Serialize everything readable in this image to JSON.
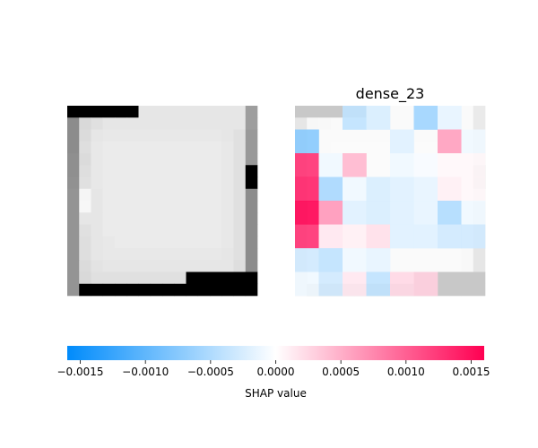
{
  "chart_data": [
    {
      "type": "heatmap",
      "title": "",
      "description_role": "input image (grayscale)",
      "grid": false,
      "axes": false,
      "cols": 16,
      "rows": 16,
      "gray_values": [
        [
          0,
          0,
          0,
          0,
          0,
          0,
          0.9,
          0.9,
          0.9,
          0.9,
          0.9,
          0.9,
          0.9,
          0.9,
          0.9,
          0.62
        ],
        [
          0.55,
          0.85,
          0.88,
          0.9,
          0.9,
          0.9,
          0.9,
          0.9,
          0.9,
          0.9,
          0.9,
          0.9,
          0.9,
          0.9,
          0.9,
          0.62
        ],
        [
          0.55,
          0.86,
          0.9,
          0.91,
          0.91,
          0.91,
          0.91,
          0.91,
          0.91,
          0.91,
          0.91,
          0.91,
          0.91,
          0.9,
          0.88,
          0.6
        ],
        [
          0.55,
          0.87,
          0.91,
          0.92,
          0.92,
          0.92,
          0.92,
          0.92,
          0.92,
          0.92,
          0.92,
          0.92,
          0.92,
          0.91,
          0.88,
          0.6
        ],
        [
          0.56,
          0.86,
          0.91,
          0.92,
          0.92,
          0.92,
          0.92,
          0.92,
          0.92,
          0.92,
          0.92,
          0.92,
          0.92,
          0.91,
          0.88,
          0.6
        ],
        [
          0.56,
          0.87,
          0.91,
          0.92,
          0.92,
          0.92,
          0.92,
          0.92,
          0.92,
          0.92,
          0.92,
          0.92,
          0.92,
          0.91,
          0.88,
          0
        ],
        [
          0.57,
          0.88,
          0.91,
          0.92,
          0.92,
          0.92,
          0.92,
          0.92,
          0.92,
          0.92,
          0.92,
          0.92,
          0.92,
          0.91,
          0.88,
          0
        ],
        [
          0.58,
          0.96,
          0.9,
          0.92,
          0.92,
          0.92,
          0.92,
          0.92,
          0.92,
          0.92,
          0.92,
          0.92,
          0.92,
          0.91,
          0.88,
          0.55
        ],
        [
          0.58,
          0.97,
          0.9,
          0.92,
          0.92,
          0.92,
          0.92,
          0.92,
          0.92,
          0.92,
          0.92,
          0.92,
          0.92,
          0.91,
          0.88,
          0.55
        ],
        [
          0.58,
          0.9,
          0.9,
          0.92,
          0.92,
          0.92,
          0.92,
          0.92,
          0.92,
          0.92,
          0.92,
          0.92,
          0.92,
          0.91,
          0.88,
          0.55
        ],
        [
          0.58,
          0.88,
          0.9,
          0.92,
          0.92,
          0.92,
          0.92,
          0.92,
          0.92,
          0.92,
          0.92,
          0.92,
          0.92,
          0.91,
          0.88,
          0.55
        ],
        [
          0.58,
          0.87,
          0.9,
          0.91,
          0.92,
          0.92,
          0.92,
          0.92,
          0.92,
          0.92,
          0.92,
          0.92,
          0.92,
          0.91,
          0.88,
          0.55
        ],
        [
          0.58,
          0.87,
          0.9,
          0.91,
          0.91,
          0.91,
          0.91,
          0.91,
          0.91,
          0.91,
          0.91,
          0.91,
          0.91,
          0.9,
          0.88,
          0.55
        ],
        [
          0.58,
          0.86,
          0.89,
          0.9,
          0.9,
          0.9,
          0.9,
          0.9,
          0.9,
          0.9,
          0.9,
          0.9,
          0.9,
          0.9,
          0.87,
          0.55
        ],
        [
          0.58,
          0.85,
          0.88,
          0.88,
          0.88,
          0.88,
          0.88,
          0.88,
          0.88,
          0.88,
          0,
          0,
          0,
          0,
          0,
          0
        ],
        [
          0.58,
          0,
          0,
          0,
          0,
          0,
          0,
          0,
          0,
          0,
          0,
          0,
          0,
          0,
          0,
          0
        ]
      ]
    },
    {
      "type": "heatmap",
      "title": "dense_23",
      "description_role": "SHAP values overlaid on input image",
      "grid": false,
      "axes": false,
      "cols": 8,
      "rows": 8,
      "shap_values": [
        [
          0.0,
          0.0,
          -0.0004,
          -0.00025,
          0.0,
          -0.0006,
          -0.00015,
          0.0
        ],
        [
          -0.00075,
          0.0,
          0.0,
          0.0,
          -0.0002,
          0.0,
          0.0006,
          -0.0001
        ],
        [
          0.0013,
          -0.0001,
          0.00045,
          0.0,
          -0.0001,
          -5e-05,
          5e-05,
          5e-05
        ],
        [
          0.0014,
          -0.00055,
          -0.0001,
          -0.00025,
          -0.0002,
          -0.00015,
          0.0001,
          5e-05
        ],
        [
          0.0016,
          0.00065,
          -0.0002,
          -0.00025,
          -0.0002,
          -0.00015,
          -0.0005,
          -0.0001
        ],
        [
          0.0013,
          0.00015,
          0.0001,
          0.0002,
          -0.0002,
          -0.0002,
          -0.0003,
          -0.0003
        ],
        [
          -0.0003,
          -0.0004,
          -0.0001,
          -0.00015,
          0.0,
          0.0,
          0.0,
          0.0
        ],
        [
          -0.0001,
          -0.0003,
          0.00015,
          -0.0004,
          0.00025,
          0.0003,
          0.0,
          0.0
        ]
      ],
      "background_overlay": "input image shown faintly beneath"
    }
  ],
  "colorbar": {
    "label": "SHAP value",
    "min": -0.0016,
    "max": 0.0016,
    "ticks": [
      -0.0015,
      -0.001,
      -0.0005,
      0.0,
      0.0005,
      0.001,
      0.0015
    ],
    "tick_labels": [
      "−0.0015",
      "−0.0010",
      "−0.0005",
      "0.0000",
      "0.0005",
      "0.0010",
      "0.0015"
    ],
    "colors": {
      "negative": "#008bfb",
      "neutral": "#ffffff",
      "positive": "#ff0052"
    }
  }
}
